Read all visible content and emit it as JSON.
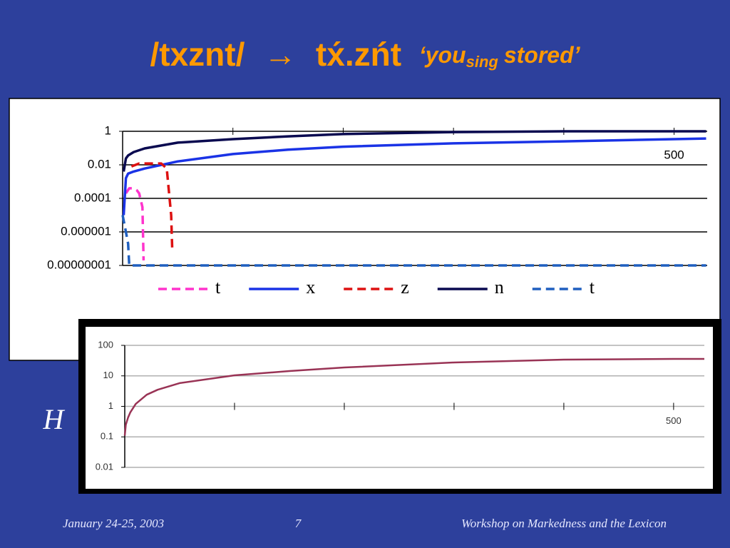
{
  "slide": {
    "title": {
      "pre": "/txznt/",
      "arrow": "→",
      "post": "tx́.zńt",
      "gloss_a": "‘you",
      "gloss_sub": "sing",
      "gloss_b": "stored’"
    },
    "side_label": "H",
    "footer": {
      "date": "January 24-25, 2003",
      "page": "7",
      "event": "Workshop on Markedness and the Lexicon"
    }
  },
  "chart_data": [
    {
      "type": "line",
      "log_y": true,
      "grid": true,
      "grid_color": "#000000",
      "legend": "bottom",
      "x_axis_at": 1,
      "xlim": [
        0,
        530
      ],
      "ylim": [
        1e-08,
        1
      ],
      "xticks": [
        {
          "value": 100,
          "label": null
        },
        {
          "value": 200,
          "label": null
        },
        {
          "value": 300,
          "label": null
        },
        {
          "value": 400,
          "label": null
        },
        500
      ],
      "yticks": [
        1,
        0.01,
        0.0001,
        1e-06,
        {
          "value": 1e-08,
          "label": "0.00000001"
        }
      ],
      "series": [
        {
          "name": "t",
          "color": "#ff33cc",
          "dash": "dashed",
          "x": [
            3,
            6,
            10,
            13,
            15,
            18,
            19
          ],
          "values": [
            0.0002,
            0.0004,
            0.0004,
            0.0003,
            0.0002,
            3e-05,
            2e-08
          ]
        },
        {
          "name": "x",
          "color": "#1a33e6",
          "dash": "solid",
          "x": [
            1,
            3,
            5,
            10,
            20,
            50,
            100,
            150,
            200,
            300,
            400,
            500,
            529
          ],
          "values": [
            1e-05,
            0.0016,
            0.003,
            0.004,
            0.006,
            0.016,
            0.044,
            0.08,
            0.12,
            0.19,
            0.25,
            0.34,
            0.37
          ]
        },
        {
          "name": "z",
          "color": "#dd1111",
          "dash": "dashed",
          "x": [
            8,
            15,
            25,
            35,
            40,
            44,
            45
          ],
          "values": [
            0.008,
            0.012,
            0.012,
            0.012,
            0.006,
            1e-05,
            9e-08
          ]
        },
        {
          "name": "n",
          "color": "#0a0a50",
          "dash": "solid",
          "x": [
            1,
            3,
            5,
            10,
            20,
            50,
            100,
            150,
            200,
            300,
            400,
            500,
            529
          ],
          "values": [
            0.004,
            0.024,
            0.036,
            0.058,
            0.095,
            0.21,
            0.34,
            0.5,
            0.68,
            0.9,
            1,
            1,
            1
          ]
        },
        {
          "name": "t",
          "color": "#1f5fbf",
          "dash": "dashed",
          "x": [
            0,
            3,
            5,
            6,
            529
          ],
          "values": [
            1e-05,
            1e-06,
            2e-07,
            1e-08,
            1e-08
          ]
        }
      ]
    },
    {
      "type": "line",
      "log_y": true,
      "grid": true,
      "grid_color": "#b0b0b0",
      "x_axis_at": 1,
      "xlim": [
        0,
        528
      ],
      "ylim": [
        0.01,
        100
      ],
      "xticks": [
        {
          "value": 100,
          "label": null
        },
        {
          "value": 200,
          "label": null
        },
        {
          "value": 300,
          "label": null
        },
        {
          "value": 400,
          "label": null
        },
        500
      ],
      "yticks": [
        100,
        10,
        1,
        0.1,
        0.01
      ],
      "series": [
        {
          "color": "#993355",
          "dash": "solid",
          "x": [
            0,
            1,
            3,
            5,
            10,
            20,
            30,
            50,
            100,
            150,
            200,
            300,
            400,
            500,
            528
          ],
          "values": [
            0.11,
            0.25,
            0.43,
            0.63,
            1.2,
            2.4,
            3.5,
            5.8,
            10.4,
            14.4,
            18.8,
            27.5,
            34,
            36,
            36
          ]
        }
      ]
    }
  ]
}
